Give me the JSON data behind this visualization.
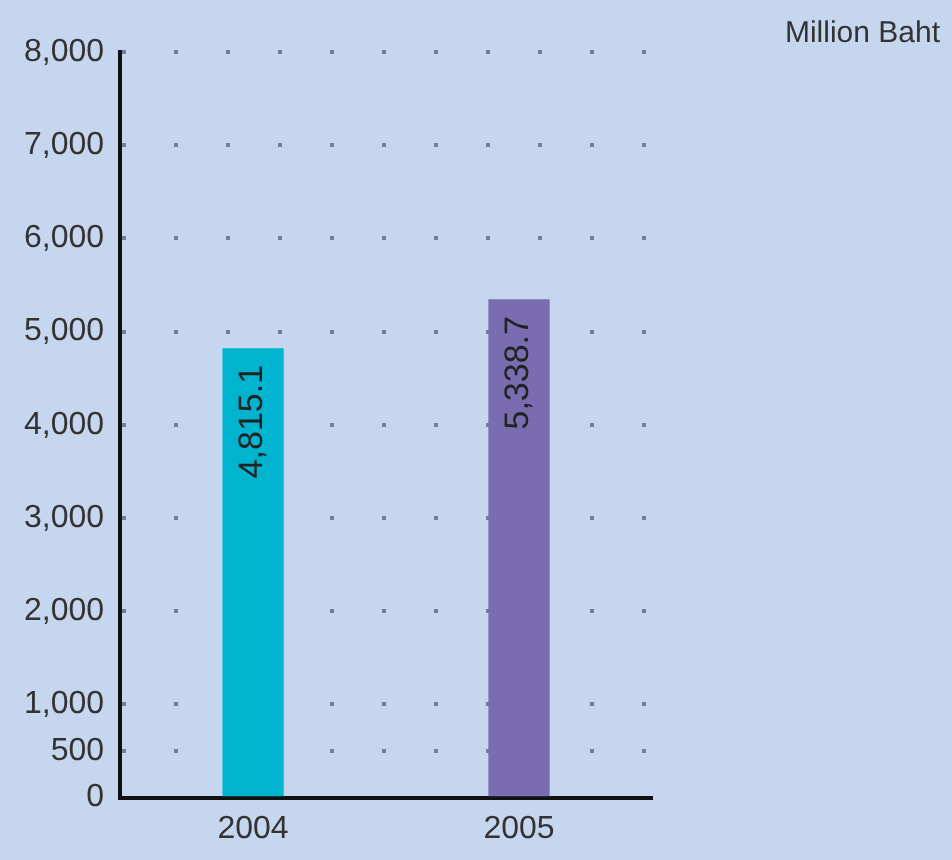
{
  "chart_data": {
    "type": "bar",
    "categories": [
      "2004",
      "2005"
    ],
    "values": [
      4815.1,
      5338.7
    ],
    "colors": [
      "#00b4d0",
      "#7a6cb0"
    ],
    "value_labels": [
      "4,815.1",
      "5,338.7"
    ],
    "ylim": [
      0,
      8000
    ],
    "yticks": [
      0,
      500,
      {
        "value": 1000,
        "label": "1,000"
      },
      {
        "value": 2000,
        "label": "2,000"
      },
      {
        "value": 3000,
        "label": "3,000"
      },
      {
        "value": 4000,
        "label": "4,000"
      },
      {
        "value": 5000,
        "label": "5,000"
      },
      {
        "value": 6000,
        "label": "6,000"
      },
      {
        "value": 7000,
        "label": "7,000"
      },
      {
        "value": 8000,
        "label": "8,000"
      }
    ],
    "grid": "y",
    "legend": false,
    "annotations": [
      "Million Baht"
    ]
  }
}
